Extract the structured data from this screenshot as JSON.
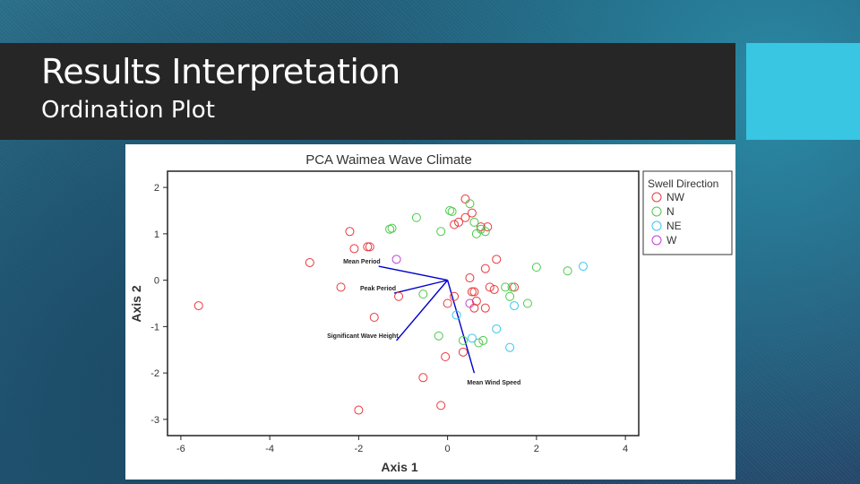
{
  "slide": {
    "title": "Results Interpretation",
    "subtitle": "Ordination Plot"
  },
  "colors": {
    "title_bar": "#262626",
    "accent": "#38c6e3",
    "nw": "#e8393d",
    "n": "#4cc94c",
    "ne": "#38c6ef",
    "w": "#c03fd6",
    "vector": "#0000cc"
  },
  "chart_data": {
    "type": "scatter",
    "title": "PCA Waimea Wave Climate",
    "xlabel": "Axis 1",
    "ylabel": "Axis 2",
    "xlim": [
      -6.3,
      4.3
    ],
    "ylim": [
      -3.35,
      2.35
    ],
    "xticks": [
      "-6",
      "-4",
      "-2",
      "0",
      "2",
      "4"
    ],
    "xtick_values": [
      -6,
      -4,
      -2,
      0,
      2,
      4
    ],
    "yticks": [
      "-3",
      "-2",
      "-1",
      "0",
      "1",
      "2"
    ],
    "ytick_values": [
      -3,
      -2,
      -1,
      0,
      1,
      2
    ],
    "grid": false,
    "legend": {
      "title": "Swell Direction",
      "placement": "top-right outside"
    },
    "series": [
      {
        "name": "NW",
        "color": "#e8393d",
        "points": [
          [
            -5.6,
            -0.55
          ],
          [
            -3.1,
            0.38
          ],
          [
            -2.4,
            -0.15
          ],
          [
            -2.2,
            1.05
          ],
          [
            -2.1,
            0.68
          ],
          [
            -1.8,
            0.72
          ],
          [
            -1.75,
            0.72
          ],
          [
            -1.65,
            -0.8
          ],
          [
            -2.0,
            -2.8
          ],
          [
            -1.1,
            -0.35
          ],
          [
            -0.55,
            -2.1
          ],
          [
            -0.15,
            -2.7
          ],
          [
            -0.05,
            -1.65
          ],
          [
            0.0,
            -0.5
          ],
          [
            0.15,
            -0.35
          ],
          [
            0.35,
            -1.55
          ],
          [
            0.4,
            1.35
          ],
          [
            0.4,
            1.75
          ],
          [
            0.55,
            1.45
          ],
          [
            0.15,
            1.2
          ],
          [
            0.25,
            1.25
          ],
          [
            0.5,
            0.05
          ],
          [
            0.55,
            -0.25
          ],
          [
            0.6,
            -0.25
          ],
          [
            0.6,
            -0.6
          ],
          [
            0.65,
            -0.45
          ],
          [
            0.75,
            1.15
          ],
          [
            0.85,
            0.25
          ],
          [
            0.85,
            -0.6
          ],
          [
            0.95,
            -0.15
          ],
          [
            1.05,
            -0.2
          ],
          [
            1.1,
            0.45
          ],
          [
            1.5,
            -0.15
          ],
          [
            0.9,
            1.15
          ]
        ]
      },
      {
        "name": "N",
        "color": "#4cc94c",
        "points": [
          [
            -1.3,
            1.1
          ],
          [
            -1.25,
            1.12
          ],
          [
            -0.7,
            1.35
          ],
          [
            -0.55,
            -0.3
          ],
          [
            -0.2,
            -1.2
          ],
          [
            -0.15,
            1.05
          ],
          [
            0.05,
            1.5
          ],
          [
            0.1,
            1.48
          ],
          [
            0.35,
            -1.3
          ],
          [
            0.5,
            1.65
          ],
          [
            0.6,
            1.25
          ],
          [
            0.65,
            1.0
          ],
          [
            0.75,
            1.1
          ],
          [
            0.8,
            -1.3
          ],
          [
            0.85,
            1.05
          ],
          [
            1.3,
            -0.15
          ],
          [
            1.4,
            -0.35
          ],
          [
            1.45,
            -0.15
          ],
          [
            1.8,
            -0.5
          ],
          [
            2.0,
            0.28
          ],
          [
            2.7,
            0.2
          ],
          [
            0.7,
            -1.35
          ]
        ]
      },
      {
        "name": "NE",
        "color": "#38c6ef",
        "points": [
          [
            0.55,
            -1.25
          ],
          [
            1.1,
            -1.05
          ],
          [
            1.4,
            -1.45
          ],
          [
            1.5,
            -0.55
          ],
          [
            3.05,
            0.3
          ],
          [
            0.2,
            -0.75
          ]
        ]
      },
      {
        "name": "W",
        "color": "#c03fd6",
        "points": [
          [
            -1.15,
            0.45
          ],
          [
            0.5,
            -0.5
          ]
        ]
      }
    ],
    "vectors": [
      {
        "label": "Mean Period",
        "x": -1.55,
        "y": 0.3
      },
      {
        "label": "Peak Period",
        "x": -1.2,
        "y": -0.28
      },
      {
        "label": "Significant Wave Height",
        "x": -1.15,
        "y": -1.3
      },
      {
        "label": "Mean Wind Speed",
        "x": 0.6,
        "y": -2.0
      }
    ]
  }
}
